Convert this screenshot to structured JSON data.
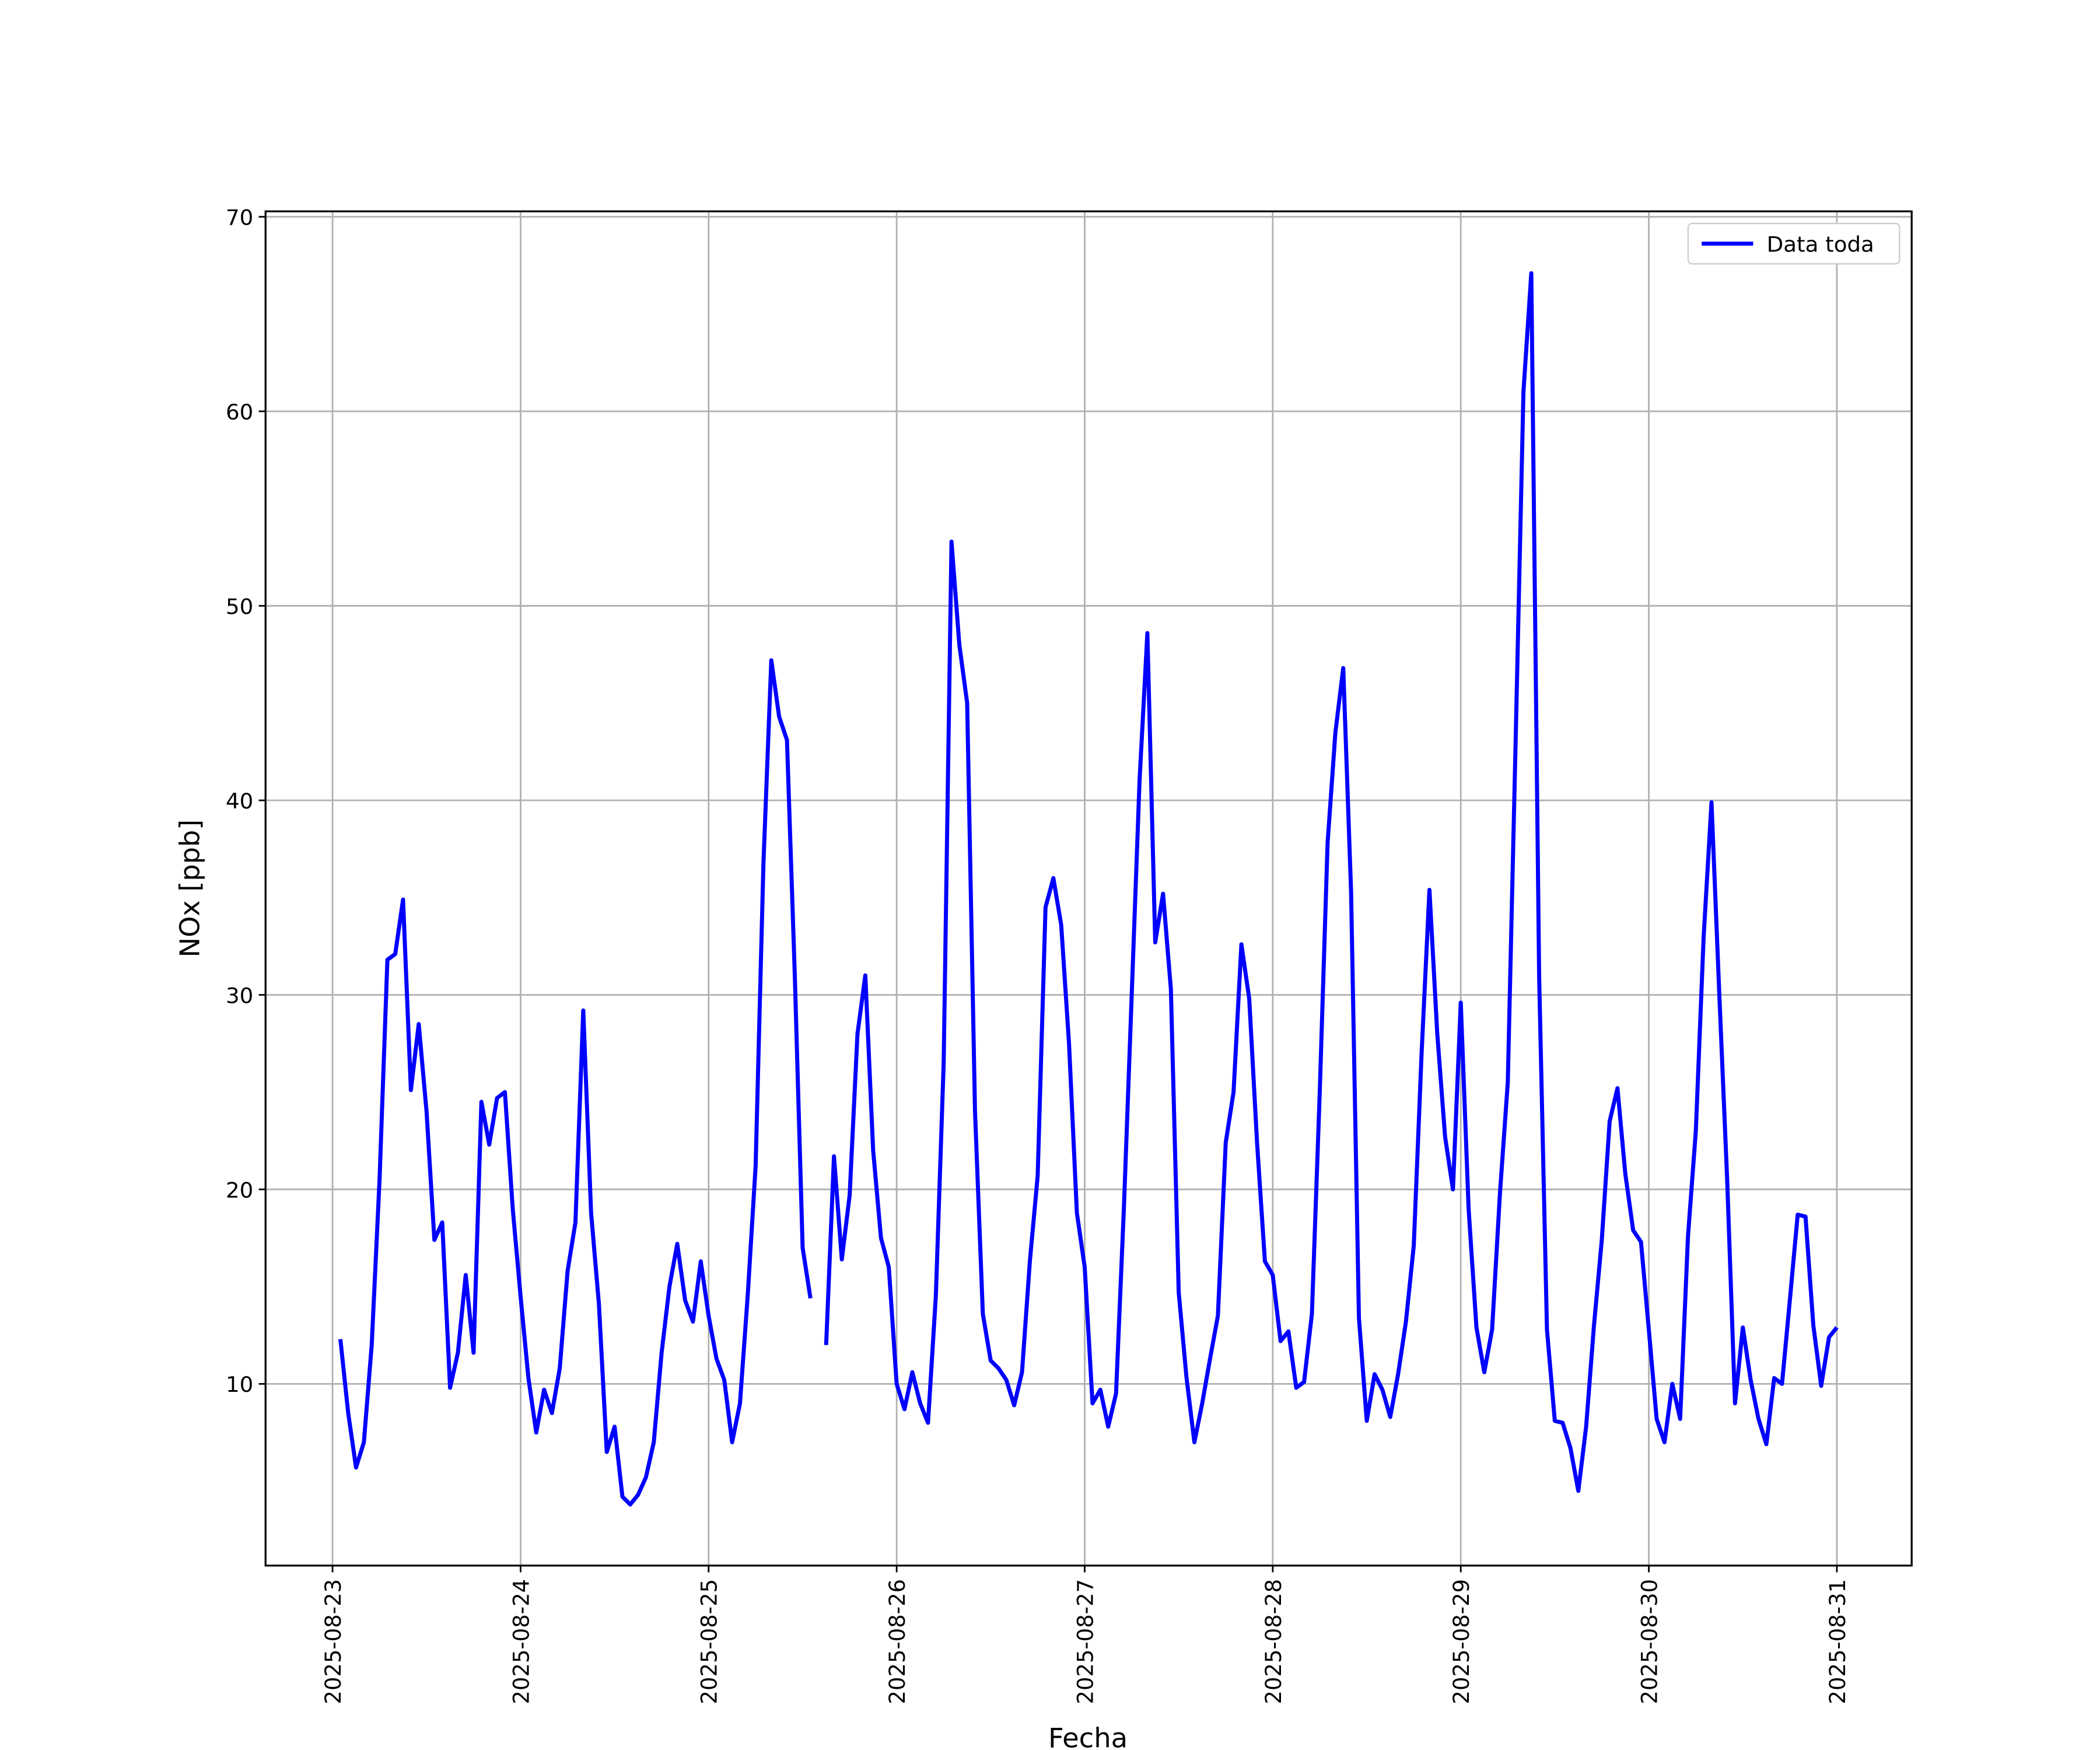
{
  "chart_data": {
    "type": "line",
    "xlabel": "Fecha",
    "ylabel": "NOx [ppb]",
    "x": [
      "2025-08-23 01:00",
      "2025-08-23 02:00",
      "2025-08-23 03:00",
      "2025-08-23 04:00",
      "2025-08-23 05:00",
      "2025-08-23 06:00",
      "2025-08-23 07:00",
      "2025-08-23 08:00",
      "2025-08-23 09:00",
      "2025-08-23 10:00",
      "2025-08-23 11:00",
      "2025-08-23 12:00",
      "2025-08-23 13:00",
      "2025-08-23 14:00",
      "2025-08-23 15:00",
      "2025-08-23 16:00",
      "2025-08-23 17:00",
      "2025-08-23 18:00",
      "2025-08-23 19:00",
      "2025-08-23 20:00",
      "2025-08-23 21:00",
      "2025-08-23 22:00",
      "2025-08-23 23:00",
      "2025-08-24 00:00",
      "2025-08-24 01:00",
      "2025-08-24 02:00",
      "2025-08-24 03:00",
      "2025-08-24 04:00",
      "2025-08-24 05:00",
      "2025-08-24 06:00",
      "2025-08-24 07:00",
      "2025-08-24 08:00",
      "2025-08-24 09:00",
      "2025-08-24 10:00",
      "2025-08-24 11:00",
      "2025-08-24 12:00",
      "2025-08-24 13:00",
      "2025-08-24 14:00",
      "2025-08-24 15:00",
      "2025-08-24 16:00",
      "2025-08-24 17:00",
      "2025-08-24 18:00",
      "2025-08-24 19:00",
      "2025-08-24 20:00",
      "2025-08-24 21:00",
      "2025-08-24 22:00",
      "2025-08-24 23:00",
      "2025-08-25 00:00",
      "2025-08-25 01:00",
      "2025-08-25 02:00",
      "2025-08-25 03:00",
      "2025-08-25 04:00",
      "2025-08-25 05:00",
      "2025-08-25 06:00",
      "2025-08-25 07:00",
      "2025-08-25 08:00",
      "2025-08-25 09:00",
      "2025-08-25 10:00",
      "2025-08-25 11:00",
      "2025-08-25 12:00",
      "2025-08-25 13:00",
      "2025-08-25 14:00",
      "2025-08-25 15:00",
      "2025-08-25 16:00",
      "2025-08-25 17:00",
      "2025-08-25 18:00",
      "2025-08-25 19:00",
      "2025-08-25 20:00",
      "2025-08-25 21:00",
      "2025-08-25 22:00",
      "2025-08-25 23:00",
      "2025-08-26 00:00",
      "2025-08-26 01:00",
      "2025-08-26 02:00",
      "2025-08-26 03:00",
      "2025-08-26 04:00",
      "2025-08-26 05:00",
      "2025-08-26 06:00",
      "2025-08-26 07:00",
      "2025-08-26 08:00",
      "2025-08-26 09:00",
      "2025-08-26 10:00",
      "2025-08-26 11:00",
      "2025-08-26 12:00",
      "2025-08-26 13:00",
      "2025-08-26 14:00",
      "2025-08-26 15:00",
      "2025-08-26 16:00",
      "2025-08-26 17:00",
      "2025-08-26 18:00",
      "2025-08-26 19:00",
      "2025-08-26 20:00",
      "2025-08-26 21:00",
      "2025-08-26 22:00",
      "2025-08-26 23:00",
      "2025-08-27 00:00",
      "2025-08-27 01:00",
      "2025-08-27 02:00",
      "2025-08-27 03:00",
      "2025-08-27 04:00",
      "2025-08-27 05:00",
      "2025-08-27 06:00",
      "2025-08-27 07:00",
      "2025-08-27 08:00",
      "2025-08-27 09:00",
      "2025-08-27 10:00",
      "2025-08-27 11:00",
      "2025-08-27 12:00",
      "2025-08-27 13:00",
      "2025-08-27 14:00",
      "2025-08-27 15:00",
      "2025-08-27 16:00",
      "2025-08-27 17:00",
      "2025-08-27 18:00",
      "2025-08-27 19:00",
      "2025-08-27 20:00",
      "2025-08-27 21:00",
      "2025-08-27 22:00",
      "2025-08-27 23:00",
      "2025-08-28 00:00",
      "2025-08-28 01:00",
      "2025-08-28 02:00",
      "2025-08-28 03:00",
      "2025-08-28 04:00",
      "2025-08-28 05:00",
      "2025-08-28 06:00",
      "2025-08-28 07:00",
      "2025-08-28 08:00",
      "2025-08-28 09:00",
      "2025-08-28 10:00",
      "2025-08-28 11:00",
      "2025-08-28 12:00",
      "2025-08-28 13:00",
      "2025-08-28 14:00",
      "2025-08-28 15:00",
      "2025-08-28 16:00",
      "2025-08-28 17:00",
      "2025-08-28 18:00",
      "2025-08-28 19:00",
      "2025-08-28 20:00",
      "2025-08-28 21:00",
      "2025-08-28 22:00",
      "2025-08-28 23:00",
      "2025-08-29 00:00",
      "2025-08-29 01:00",
      "2025-08-29 02:00",
      "2025-08-29 03:00",
      "2025-08-29 04:00",
      "2025-08-29 05:00",
      "2025-08-29 06:00",
      "2025-08-29 07:00",
      "2025-08-29 08:00",
      "2025-08-29 09:00",
      "2025-08-29 10:00",
      "2025-08-29 11:00",
      "2025-08-29 12:00",
      "2025-08-29 13:00",
      "2025-08-29 14:00",
      "2025-08-29 15:00",
      "2025-08-29 16:00",
      "2025-08-29 17:00",
      "2025-08-29 18:00",
      "2025-08-29 19:00",
      "2025-08-29 20:00",
      "2025-08-29 21:00",
      "2025-08-29 22:00",
      "2025-08-29 23:00",
      "2025-08-30 00:00",
      "2025-08-30 01:00",
      "2025-08-30 02:00",
      "2025-08-30 03:00",
      "2025-08-30 04:00",
      "2025-08-30 05:00",
      "2025-08-30 06:00",
      "2025-08-30 07:00",
      "2025-08-30 08:00",
      "2025-08-30 09:00",
      "2025-08-30 10:00",
      "2025-08-30 11:00",
      "2025-08-30 12:00",
      "2025-08-30 13:00",
      "2025-08-30 14:00",
      "2025-08-30 15:00",
      "2025-08-30 16:00",
      "2025-08-30 17:00",
      "2025-08-30 18:00",
      "2025-08-30 19:00",
      "2025-08-30 20:00",
      "2025-08-30 21:00",
      "2025-08-30 22:00",
      "2025-08-30 23:00",
      "2025-08-31 00:00"
    ],
    "series": [
      {
        "name": "Data toda",
        "color": "#0000ff",
        "values": [
          12.3,
          8.5,
          5.7,
          7.0,
          12.0,
          20.5,
          31.8,
          32.1,
          34.9,
          25.1,
          28.5,
          24.0,
          17.4,
          18.3,
          9.8,
          11.6,
          15.6,
          11.6,
          24.5,
          22.3,
          24.7,
          25.0,
          19.0,
          14.5,
          10.3,
          7.5,
          9.7,
          8.5,
          10.8,
          15.8,
          18.3,
          29.2,
          18.8,
          14.1,
          6.5,
          7.8,
          4.2,
          3.8,
          4.3,
          5.2,
          7.0,
          11.6,
          15.0,
          17.2,
          14.3,
          13.2,
          16.3,
          13.5,
          11.3,
          10.2,
          7.0,
          9.0,
          14.6,
          21.2,
          36.8,
          47.2,
          44.3,
          43.1,
          31.0,
          17.0,
          14.4,
          null,
          12.0,
          21.7,
          16.4,
          19.7,
          28.0,
          31.0,
          22.0,
          17.5,
          16.0,
          10.0,
          8.7,
          10.6,
          9.0,
          8.0,
          14.5,
          26.5,
          53.3,
          48.0,
          45.0,
          24.0,
          13.6,
          11.2,
          10.8,
          10.2,
          8.9,
          10.6,
          16.3,
          20.7,
          34.5,
          36.0,
          33.6,
          27.5,
          18.8,
          16.0,
          9.0,
          9.7,
          7.8,
          9.5,
          19.0,
          30.0,
          41.0,
          48.6,
          32.7,
          35.2,
          30.3,
          14.7,
          10.3,
          7.0,
          9.0,
          11.3,
          13.5,
          22.4,
          25.0,
          32.6,
          29.8,
          22.4,
          16.3,
          15.6,
          12.2,
          12.7,
          9.8,
          10.1,
          13.6,
          25.0,
          37.8,
          43.5,
          46.8,
          35.3,
          13.4,
          8.1,
          10.5,
          9.7,
          8.3,
          10.5,
          13.2,
          17.1,
          27.0,
          35.4,
          28.0,
          22.7,
          20.0,
          29.6,
          19.0,
          12.9,
          10.6,
          12.8,
          19.8,
          25.5,
          43.0,
          61.0,
          67.1,
          31.0,
          12.8,
          8.1,
          8.0,
          6.7,
          4.5,
          7.8,
          13.0,
          17.4,
          23.5,
          25.2,
          20.8,
          17.9,
          17.3,
          12.8,
          8.2,
          7.0,
          10.0,
          8.2,
          17.6,
          23.0,
          33.0,
          39.9,
          30.0,
          20.5,
          9.0,
          12.9,
          10.2,
          8.2,
          6.9,
          10.3,
          10.0,
          14.3,
          18.7,
          18.6,
          13.0,
          9.9,
          12.4,
          12.9
        ]
      }
    ],
    "xlim": [
      "2025-08-22 15:27",
      "2025-08-31 09:33"
    ],
    "xticks": [
      "2025-08-23",
      "2025-08-24",
      "2025-08-25",
      "2025-08-26",
      "2025-08-27",
      "2025-08-28",
      "2025-08-29",
      "2025-08-30",
      "2025-08-31"
    ],
    "ylim": [
      0.66,
      70.28
    ],
    "yticks": [
      10,
      20,
      30,
      40,
      50,
      60,
      70
    ],
    "grid": true,
    "legend": "upper-right"
  }
}
